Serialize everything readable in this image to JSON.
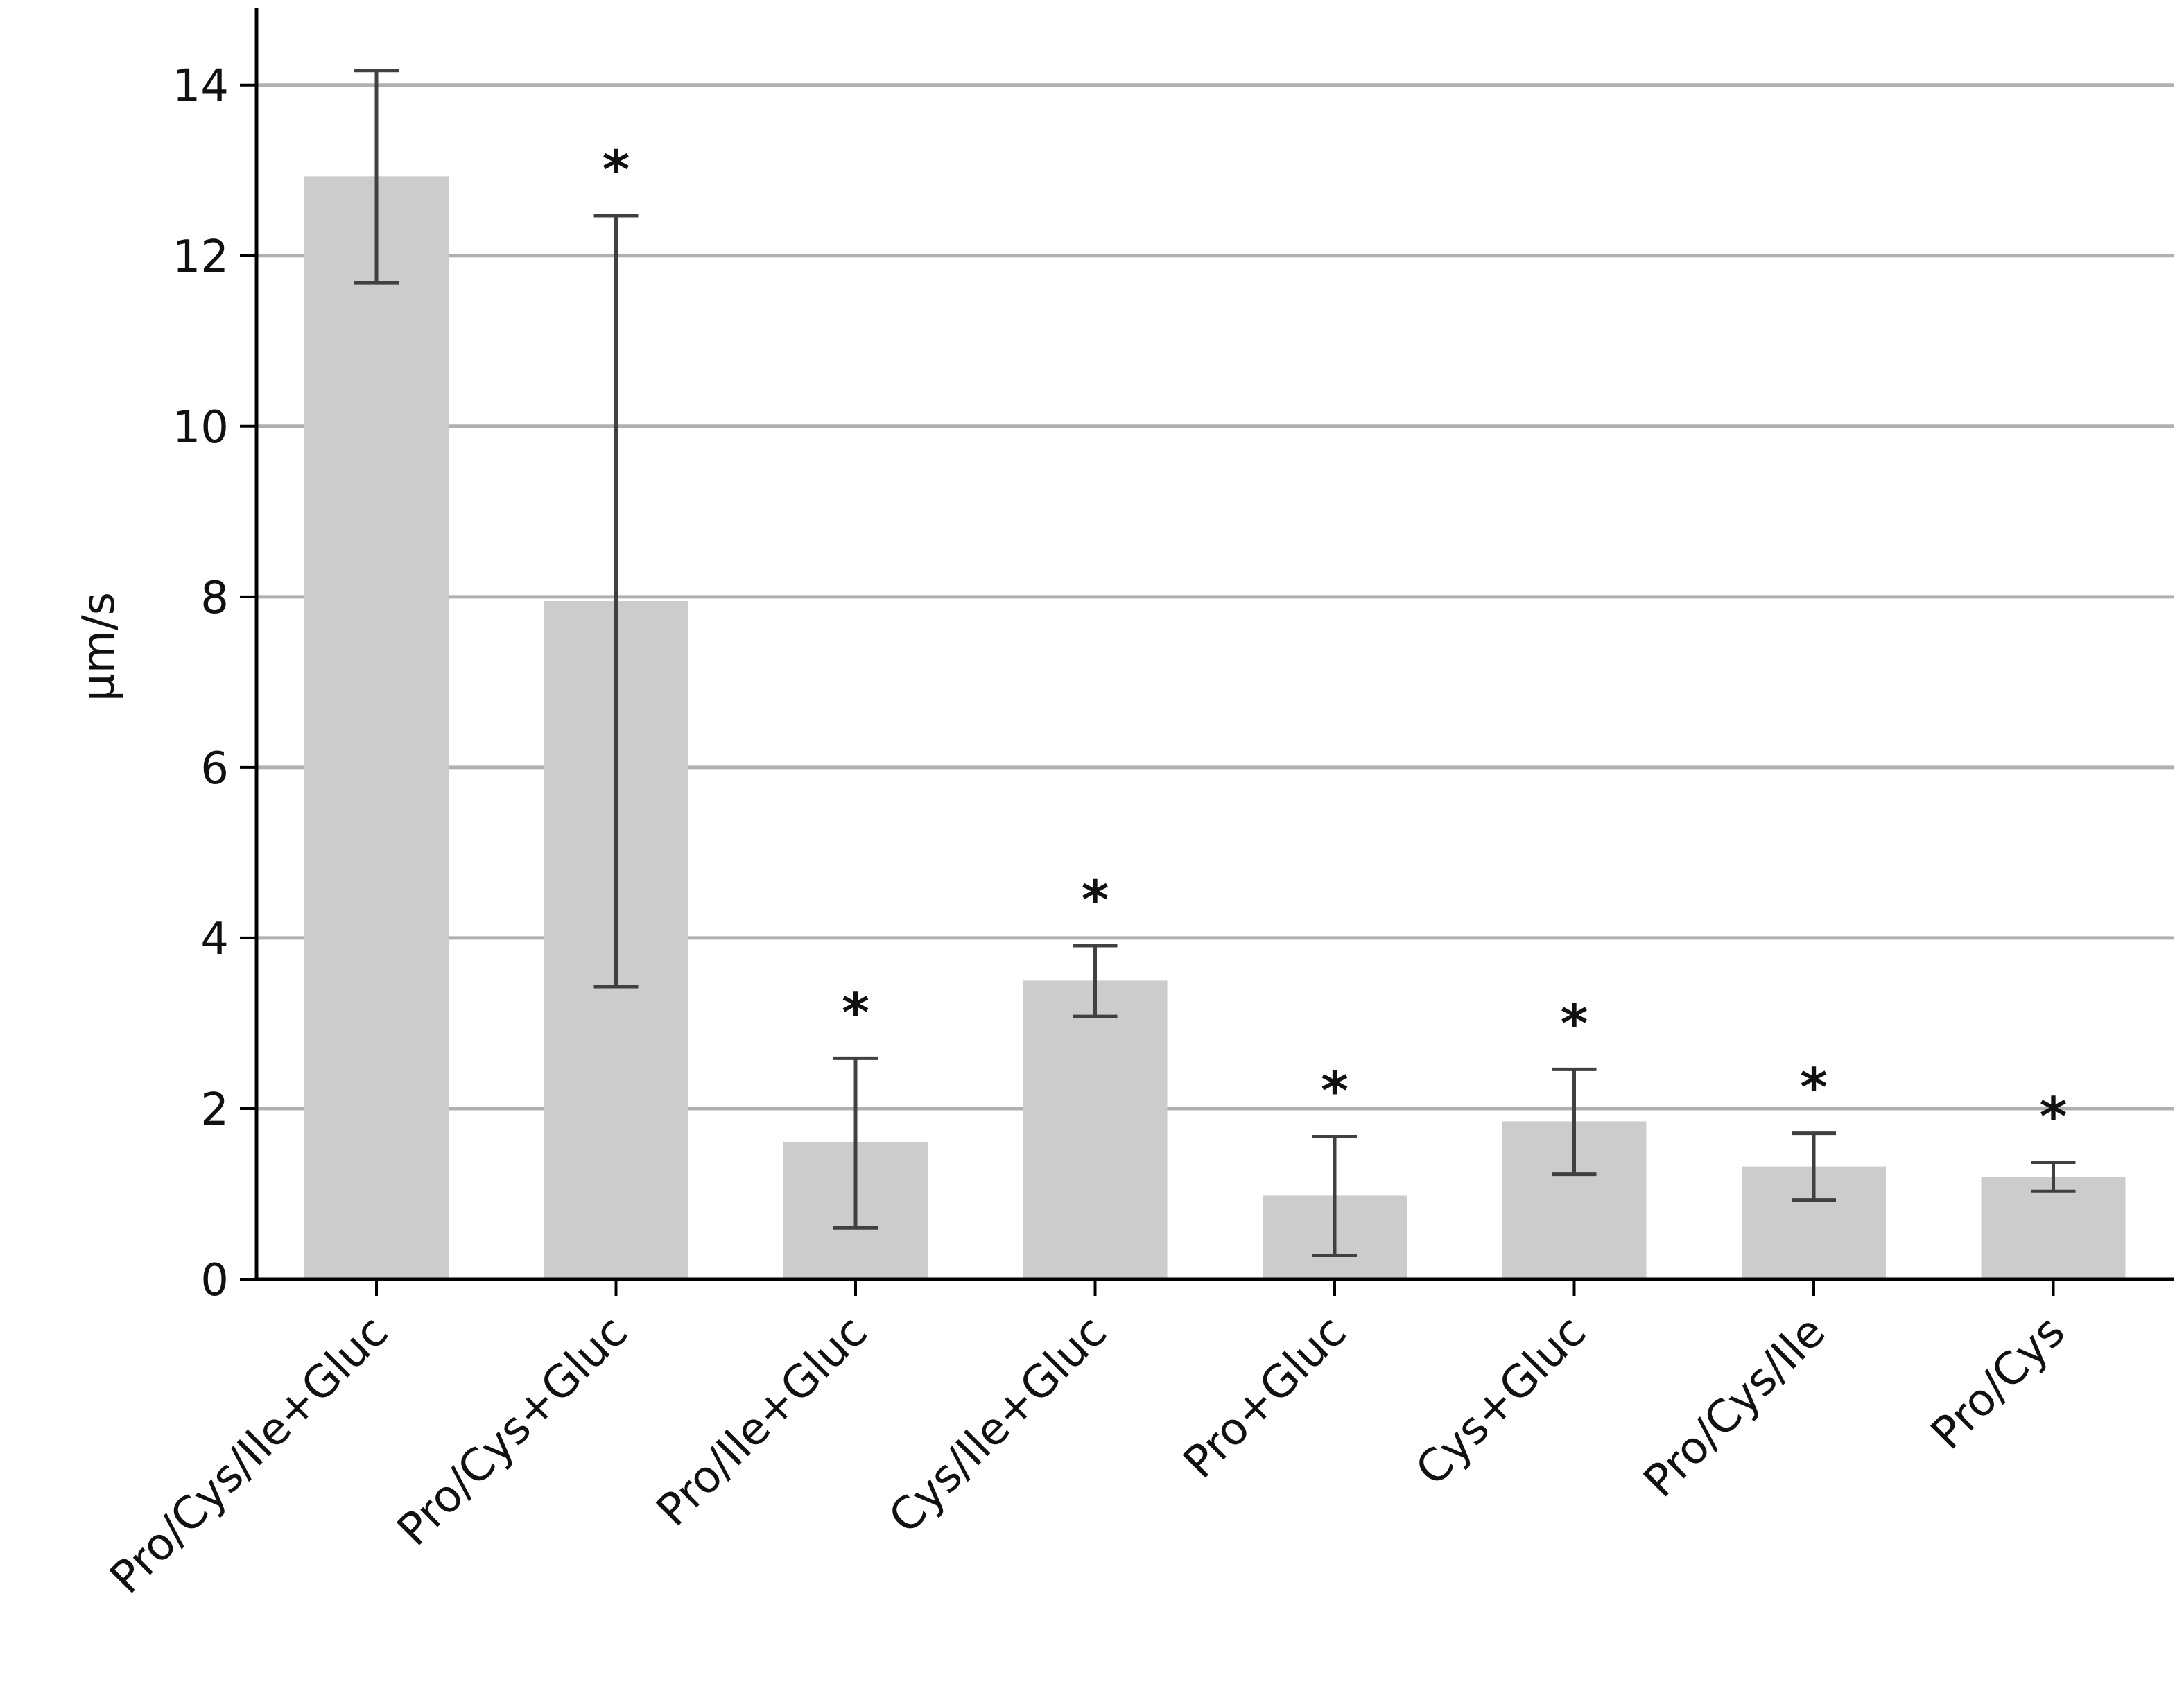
{
  "chart_data": {
    "type": "bar",
    "title": "",
    "xlabel": "",
    "ylabel": "µm/s",
    "ylim": [
      0,
      14.9
    ],
    "yticks": [
      0,
      2,
      4,
      6,
      8,
      10,
      12,
      14
    ],
    "grid": "horizontal",
    "categories": [
      "Pro/Cys/Ile+Gluc",
      "Pro/Cys+Gluc",
      "Pro/Ile+Gluc",
      "Cys/Ile+Gluc",
      "Pro+Gluc",
      "Cys+Gluc",
      "Pro/Cys/Ile",
      "Pro/Cys"
    ],
    "values": [
      12.93,
      7.95,
      1.61,
      3.5,
      0.98,
      1.85,
      1.32,
      1.2
    ],
    "error_low": [
      11.68,
      3.43,
      0.6,
      3.08,
      0.28,
      1.23,
      0.93,
      1.03
    ],
    "error_high": [
      14.17,
      12.47,
      2.59,
      3.91,
      1.67,
      2.46,
      1.71,
      1.37
    ],
    "significance": [
      "",
      "*",
      "*",
      "*",
      "*",
      "*",
      "*",
      "*"
    ],
    "colors": {
      "bar": "#cccccc",
      "error": "#404040",
      "grid": "#b0b0b0",
      "axis": "#000000"
    }
  }
}
